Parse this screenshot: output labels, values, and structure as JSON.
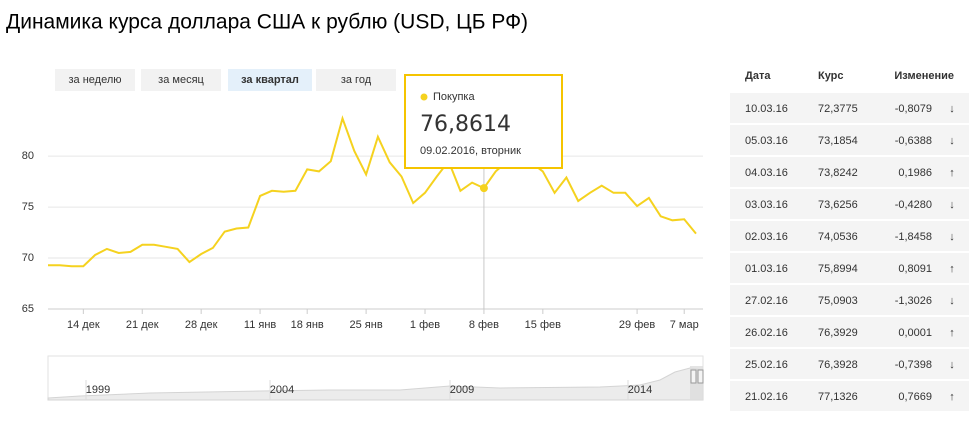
{
  "header": {
    "title": "Динамика курса доллара США к рублю (USD, ЦБ РФ)"
  },
  "tabs": [
    "за неделю",
    "за месяц",
    "за квартал",
    "за год"
  ],
  "active_tab": 2,
  "tooltip": {
    "series": "Покупка",
    "value": "76,8614",
    "date": "09.02.2016, вторник",
    "index": 37
  },
  "chart_data": {
    "type": "line",
    "categories": [
      null,
      null,
      null,
      "14 дек",
      null,
      null,
      null,
      null,
      "21 дек",
      null,
      null,
      null,
      null,
      "28 дек",
      null,
      null,
      null,
      null,
      "11 янв",
      null,
      null,
      null,
      "18 янв",
      null,
      null,
      null,
      null,
      "25 янв",
      null,
      null,
      null,
      null,
      "1 фев",
      null,
      null,
      null,
      null,
      "8 фев",
      null,
      null,
      null,
      null,
      "15 фев",
      null,
      null,
      null,
      null,
      null,
      null,
      null,
      "29 фев",
      null,
      null,
      null,
      "7 мар",
      null
    ],
    "series": [
      {
        "name": "Покупка",
        "color": "#f5d21f",
        "values": [
          69.3,
          69.3,
          69.2,
          69.2,
          70.3,
          70.9,
          70.5,
          70.6,
          71.3,
          71.3,
          71.1,
          70.9,
          69.6,
          70.4,
          71.0,
          72.6,
          72.9,
          73.0,
          76.1,
          76.6,
          76.5,
          76.6,
          78.7,
          78.5,
          79.5,
          83.7,
          80.5,
          78.2,
          81.9,
          79.4,
          78.0,
          75.4,
          76.4,
          78.0,
          79.5,
          76.6,
          77.4,
          76.8614,
          78.5,
          79.5,
          79.3,
          79.4,
          78.5,
          76.4,
          77.9,
          75.6,
          76.4,
          77.1,
          76.4,
          76.4,
          75.1,
          75.9,
          74.1,
          73.7,
          73.8,
          72.4
        ]
      }
    ],
    "ylim": [
      65,
      86
    ],
    "yticks": [
      65,
      70,
      75,
      80
    ],
    "grid": true
  },
  "navigator": {
    "labels": [
      "1999",
      "2004",
      "2009",
      "2014"
    ]
  },
  "table": {
    "columns": [
      "Дата",
      "Курс",
      "Изменение"
    ],
    "rows": [
      [
        "10.03.16",
        "72,3775",
        "-0,8079",
        "↓"
      ],
      [
        "05.03.16",
        "73,1854",
        "-0,6388",
        "↓"
      ],
      [
        "04.03.16",
        "73,8242",
        "0,1986",
        "↑"
      ],
      [
        "03.03.16",
        "73,6256",
        "-0,4280",
        "↓"
      ],
      [
        "02.03.16",
        "74,0536",
        "-1,8458",
        "↓"
      ],
      [
        "01.03.16",
        "75,8994",
        "0,8091",
        "↑"
      ],
      [
        "27.02.16",
        "75,0903",
        "-1,3026",
        "↓"
      ],
      [
        "26.02.16",
        "76,3929",
        "0,0001",
        "↑"
      ],
      [
        "25.02.16",
        "76,3928",
        "-0,7398",
        "↓"
      ],
      [
        "21.02.16",
        "77,1326",
        "0,7669",
        "↑"
      ]
    ]
  }
}
